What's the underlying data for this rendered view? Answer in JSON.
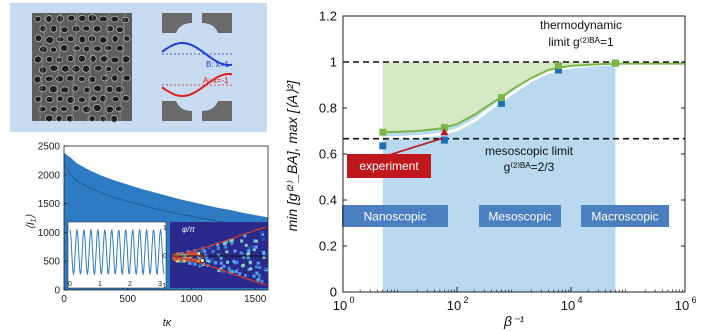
{
  "colors": {
    "panel_bg": "#c9dbf1",
    "blue_data": "#1f6fb2",
    "green_data": "#7ab648",
    "curve_green": "#7ab648",
    "curve_white": "#ffffff",
    "green_band": "#d7e8c4",
    "blue_band": "#b9d9ee",
    "label_blue": "#4a80c0",
    "experiment_red": "#c0171c",
    "trace_blue": "#2e7bc4",
    "mode_b": "#1f3ed8",
    "mode_a": "#e0201a"
  },
  "schematic": {
    "mode_b_label": "B: x=1",
    "mode_a_label": "A: x=-1"
  },
  "inset": {
    "phase_label": "φ/π",
    "color_ticks": [
      "1",
      "0",
      "-1"
    ],
    "sine_ticks": [
      "0",
      "1",
      "2",
      "3"
    ]
  },
  "left_chart_data": {
    "type": "area",
    "ylabel": "⟨I₁⟩",
    "xlabel": "tκ",
    "xlim": [
      0,
      1600
    ],
    "ylim": [
      0,
      2500
    ],
    "x_ticks": [
      "0",
      "500",
      "1000",
      "1500"
    ],
    "y_ticks": [
      "0",
      "500",
      "1000",
      "1500",
      "2000",
      "2500"
    ],
    "series": [
      {
        "x": [
          0,
          50,
          100,
          200,
          300,
          400,
          500,
          600,
          700,
          800,
          900,
          1000,
          1100,
          1200,
          1300,
          1400,
          1500,
          1600
        ],
        "upper": [
          2380,
          2300,
          2200,
          2080,
          1980,
          1900,
          1830,
          1760,
          1700,
          1640,
          1580,
          1530,
          1480,
          1430,
          1390,
          1340,
          1300,
          1260
        ],
        "lower": [
          2200,
          2000,
          1900,
          1780,
          1680,
          1600,
          1540,
          1480,
          1420,
          1370,
          1320,
          1280,
          1240,
          1200,
          1160,
          1130,
          1100,
          1070
        ]
      }
    ]
  },
  "chart_data": {
    "type": "scatter",
    "title": "",
    "xlabel": "β⁻¹",
    "ylabel": "min [g⁽²⁾_BA], max [⟨A⟩²]",
    "xscale": "log",
    "xlim": [
      1,
      1000000
    ],
    "ylim": [
      0,
      1.2
    ],
    "x_ticks": [
      {
        "v": 1,
        "base": "10",
        "exp": "0"
      },
      {
        "v": 100,
        "base": "10",
        "exp": "2"
      },
      {
        "v": 10000,
        "base": "10",
        "exp": "4"
      },
      {
        "v": 1000000,
        "base": "10",
        "exp": "6"
      }
    ],
    "y_ticks": [
      "0",
      "0.2",
      "0.4",
      "0.6",
      "0.8",
      "1",
      "1.2"
    ],
    "grid": false,
    "series": [
      {
        "color": "blue",
        "x": [
          5,
          60,
          600,
          6000,
          60000
        ],
        "y": [
          0.635,
          0.66,
          0.82,
          0.965,
          0.995
        ]
      },
      {
        "color": "green",
        "x": [
          5,
          60,
          600,
          6000,
          60000
        ],
        "y": [
          0.695,
          0.715,
          0.845,
          0.985,
          0.995
        ]
      }
    ],
    "curves": [
      {
        "color": "green",
        "x": [
          5,
          10,
          20,
          40,
          60,
          100,
          200,
          400,
          600,
          1000,
          2000,
          4000,
          6000,
          10000,
          30000,
          60000,
          100000,
          1000000
        ],
        "y": [
          0.695,
          0.697,
          0.7,
          0.708,
          0.715,
          0.73,
          0.77,
          0.82,
          0.848,
          0.885,
          0.93,
          0.965,
          0.975,
          0.983,
          0.99,
          0.992,
          0.993,
          0.993
        ]
      },
      {
        "color": "white",
        "x": [
          5,
          10,
          20,
          40,
          60,
          100,
          200,
          400,
          600,
          1000,
          2000,
          4000,
          6000,
          10000,
          30000,
          60000
        ],
        "y": [
          0.67,
          0.672,
          0.675,
          0.683,
          0.69,
          0.705,
          0.745,
          0.8,
          0.83,
          0.87,
          0.92,
          0.955,
          0.968,
          0.978,
          0.988,
          0.992
        ]
      }
    ],
    "reference_lines": [
      {
        "y": 1,
        "label_lines": [
          "thermodynamic",
          "limit g⁽²⁾ᴮᴬ=1"
        ]
      },
      {
        "y": 0.6667,
        "label_lines": [
          "mesoscopic limit",
          "g⁽²⁾ᴮᴬ=2/3"
        ]
      }
    ],
    "regions": [
      {
        "label": "Nanoscopic"
      },
      {
        "label": "Mesoscopic"
      },
      {
        "label": "Macroscopic"
      }
    ],
    "annotation": {
      "label": "experiment",
      "x": 60,
      "y": 0.69
    }
  }
}
